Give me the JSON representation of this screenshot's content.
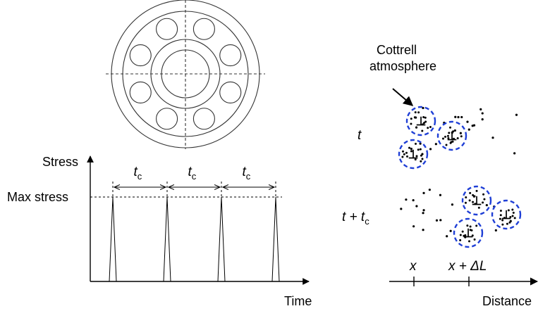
{
  "bearing": {},
  "stress_plot": {
    "y_axis_label": "Stress",
    "x_axis_label": "Time",
    "max_label": "Max stress",
    "interval_symbol": "t",
    "interval_subscript": "c",
    "interval_count": 3,
    "pulse_count": 4
  },
  "atmosphere_panel": {
    "callout_line1": "Cottrell",
    "callout_line2": "atmosphere",
    "row1_label": "t",
    "row2_label_prefix": "t + t",
    "row2_label_subscript": "c",
    "axis_label": "Distance",
    "tick1_label": "x",
    "tick2_prefix": "x + Δ",
    "tick2_var": "L",
    "dislocation_symbol": "⊥",
    "atmosphere_outline_color": "#1f3fd6"
  }
}
